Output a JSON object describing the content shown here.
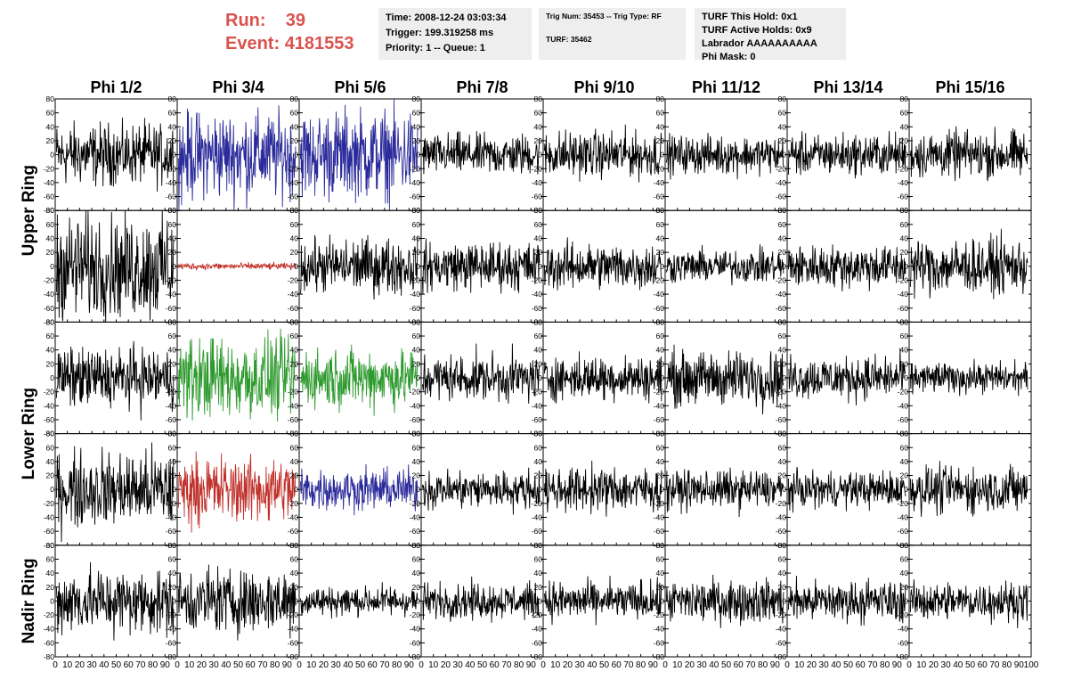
{
  "run": {
    "run_label": "Run:",
    "run_value": "39",
    "event_label": "Event:",
    "event_value": "4181553"
  },
  "info": {
    "time": "Time: 2008-12-24 03:03:34",
    "trigger": "Trigger: 199.319258 ms",
    "priority": "Priority: 1 -- Queue: 1",
    "trig_num": "Trig Num: 35453 -- Trig Type: RF",
    "turf": "TURF: 35462",
    "hold": "TURF This Hold: 0x1",
    "active_holds": "TURF Active Holds: 0x9",
    "labrador": "Labrador AAAAAAAAAA",
    "phi_mask": "Phi Mask: 0"
  },
  "colors": {
    "run_text": "#d9534f",
    "trace_default": "#000000",
    "trace_blue": "#2b2b9b",
    "trace_red": "#c0302a",
    "trace_green": "#2e9a2e",
    "info_bg": "#eeeeee"
  },
  "chart_data": {
    "type": "line",
    "columns": [
      "Phi 1/2",
      "Phi 3/4",
      "Phi 5/6",
      "Phi 7/8",
      "Phi 9/10",
      "Phi 11/12",
      "Phi 13/14",
      "Phi 15/16"
    ],
    "row_groups": [
      {
        "label": "Upper Ring",
        "rows": [
          0,
          1
        ]
      },
      {
        "label": "Lower Ring",
        "rows": [
          2,
          3
        ]
      },
      {
        "label": "Nadir Ring",
        "rows": [
          4
        ]
      }
    ],
    "xlim": [
      0,
      100
    ],
    "ylim": [
      -80,
      80
    ],
    "x_ticks": [
      0,
      10,
      20,
      30,
      40,
      50,
      60,
      70,
      80,
      90,
      100
    ],
    "y_ticks": [
      -80,
      -60,
      -40,
      -20,
      0,
      20,
      40,
      60,
      80
    ],
    "x_tick_labels_last": [
      "0",
      "10",
      "20",
      "30",
      "40",
      "50",
      "60",
      "70",
      "80",
      "90",
      "100"
    ],
    "x_tick_labels_other": [
      "0",
      "10",
      "20",
      "30",
      "40",
      "50",
      "60",
      "70",
      "80",
      "90",
      ""
    ],
    "samples_per_trace": 260,
    "panels": [
      [
        {
          "color": "black",
          "amp": 22
        },
        {
          "color": "blue",
          "amp": 32
        },
        {
          "color": "blue",
          "amp": 32
        },
        {
          "color": "black",
          "amp": 15
        },
        {
          "color": "black",
          "amp": 17
        },
        {
          "color": "black",
          "amp": 14
        },
        {
          "color": "black",
          "amp": 15
        },
        {
          "color": "black",
          "amp": 17
        }
      ],
      [
        {
          "color": "black",
          "amp": 38
        },
        {
          "color": "red",
          "amp": 2.5
        },
        {
          "color": "black",
          "amp": 20
        },
        {
          "color": "black",
          "amp": 18
        },
        {
          "color": "black",
          "amp": 17
        },
        {
          "color": "black",
          "amp": 12
        },
        {
          "color": "black",
          "amp": 16
        },
        {
          "color": "black",
          "amp": 20
        }
      ],
      [
        {
          "color": "black",
          "amp": 22
        },
        {
          "color": "green",
          "amp": 30
        },
        {
          "color": "green",
          "amp": 22
        },
        {
          "color": "black",
          "amp": 17
        },
        {
          "color": "black",
          "amp": 16
        },
        {
          "color": "black",
          "amp": 20
        },
        {
          "color": "black",
          "amp": 16
        },
        {
          "color": "black",
          "amp": 11
        }
      ],
      [
        {
          "color": "black",
          "amp": 28
        },
        {
          "color": "red",
          "amp": 24
        },
        {
          "color": "blue",
          "amp": 15
        },
        {
          "color": "black",
          "amp": 14
        },
        {
          "color": "black",
          "amp": 16
        },
        {
          "color": "black",
          "amp": 14
        },
        {
          "color": "black",
          "amp": 13
        },
        {
          "color": "black",
          "amp": 17
        }
      ],
      [
        {
          "color": "black",
          "amp": 24
        },
        {
          "color": "black",
          "amp": 24
        },
        {
          "color": "black",
          "amp": 11
        },
        {
          "color": "black",
          "amp": 13
        },
        {
          "color": "black",
          "amp": 14
        },
        {
          "color": "black",
          "amp": 16
        },
        {
          "color": "black",
          "amp": 15
        },
        {
          "color": "black",
          "amp": 14
        }
      ]
    ]
  }
}
